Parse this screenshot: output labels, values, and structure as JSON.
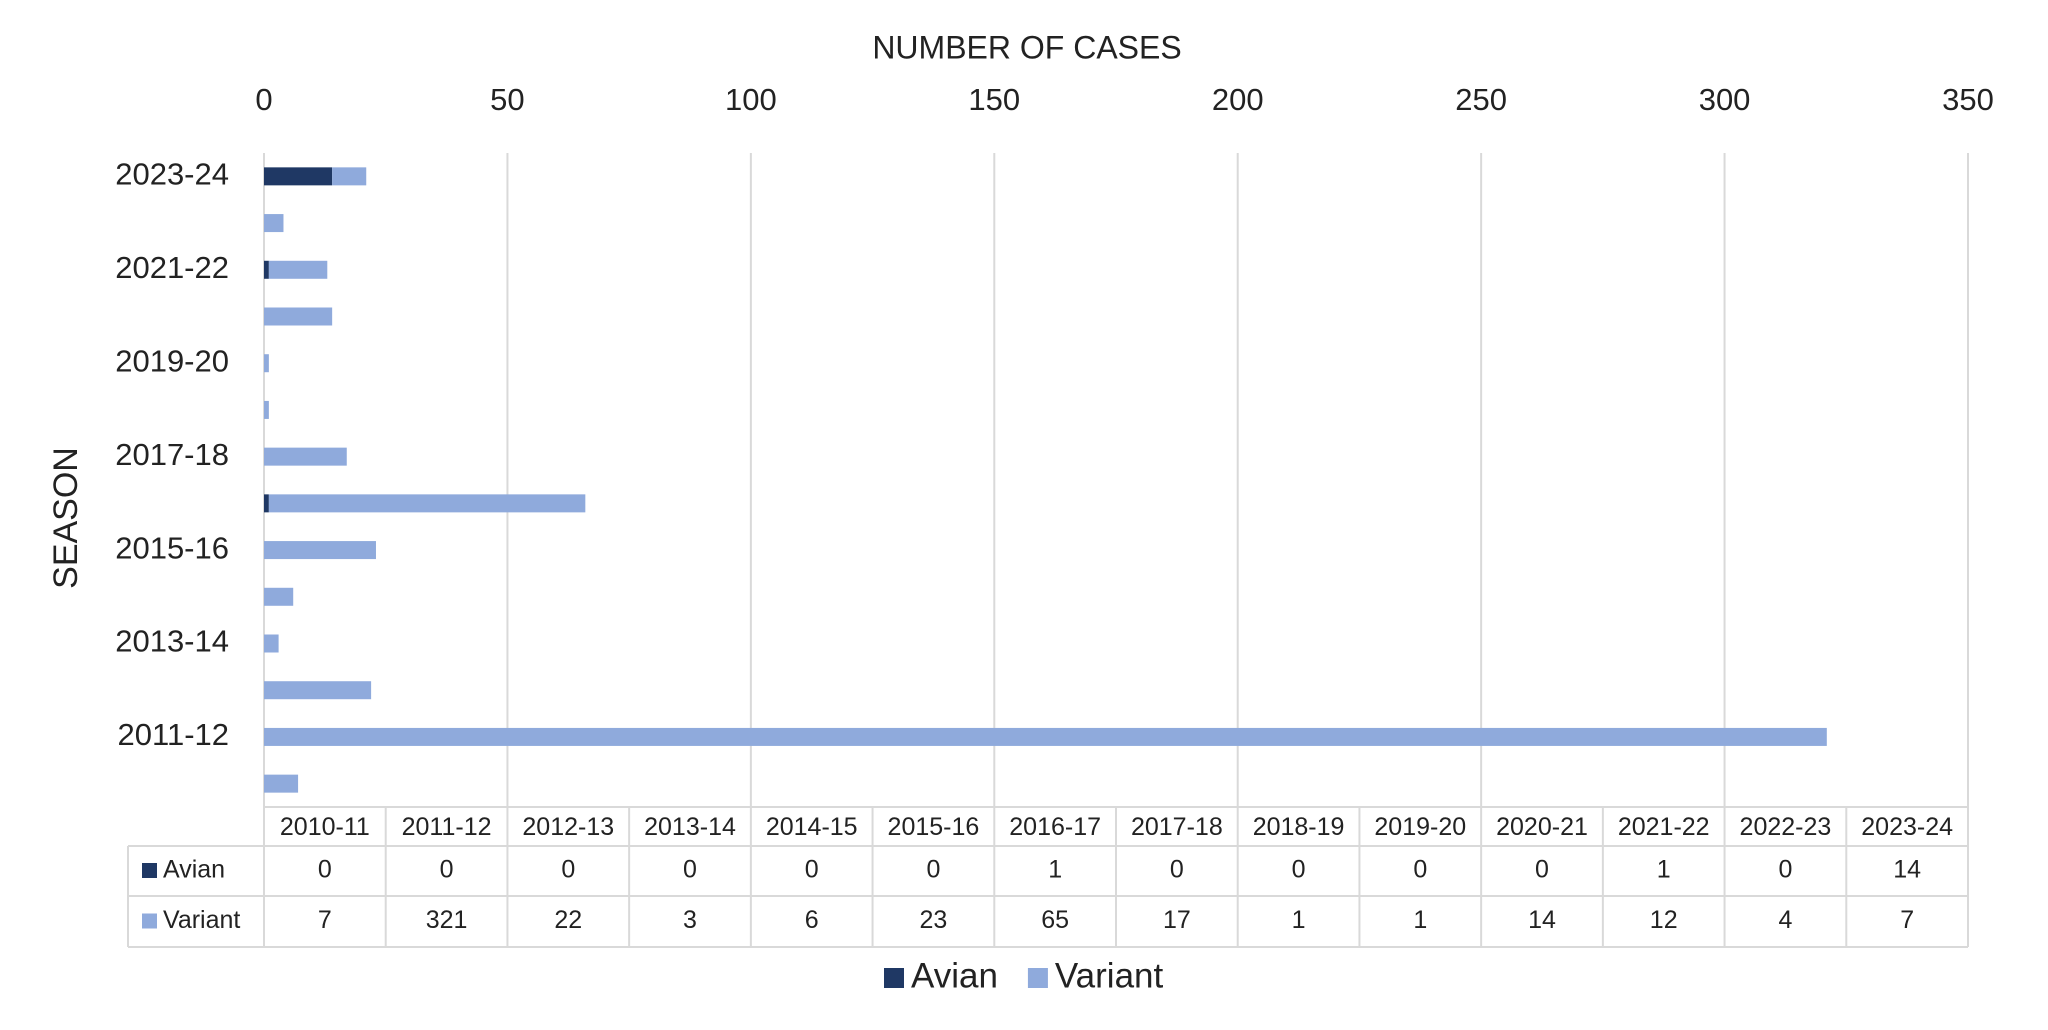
{
  "chart_data": {
    "type": "stacked_barh",
    "x_label": "NUMBER OF CASES",
    "y_label": "SEASON",
    "categories": [
      "2010-11",
      "2011-12",
      "2012-13",
      "2013-14",
      "2014-15",
      "2015-16",
      "2016-17",
      "2017-18",
      "2018-19",
      "2019-20",
      "2020-21",
      "2021-22",
      "2022-23",
      "2023-24"
    ],
    "series": [
      {
        "name": "Avian",
        "color": "#1f3864",
        "values": [
          0,
          0,
          0,
          0,
          0,
          0,
          1,
          0,
          0,
          0,
          0,
          1,
          0,
          14
        ]
      },
      {
        "name": "Variant",
        "color": "#8faadc",
        "values": [
          7,
          321,
          22,
          3,
          6,
          23,
          65,
          17,
          1,
          1,
          14,
          12,
          4,
          7
        ]
      }
    ],
    "xlim": [
      0,
      350
    ],
    "xticks": [
      0,
      50,
      100,
      150,
      200,
      250,
      300,
      350
    ],
    "grid": true,
    "legend": "bottom",
    "data_table": true
  }
}
